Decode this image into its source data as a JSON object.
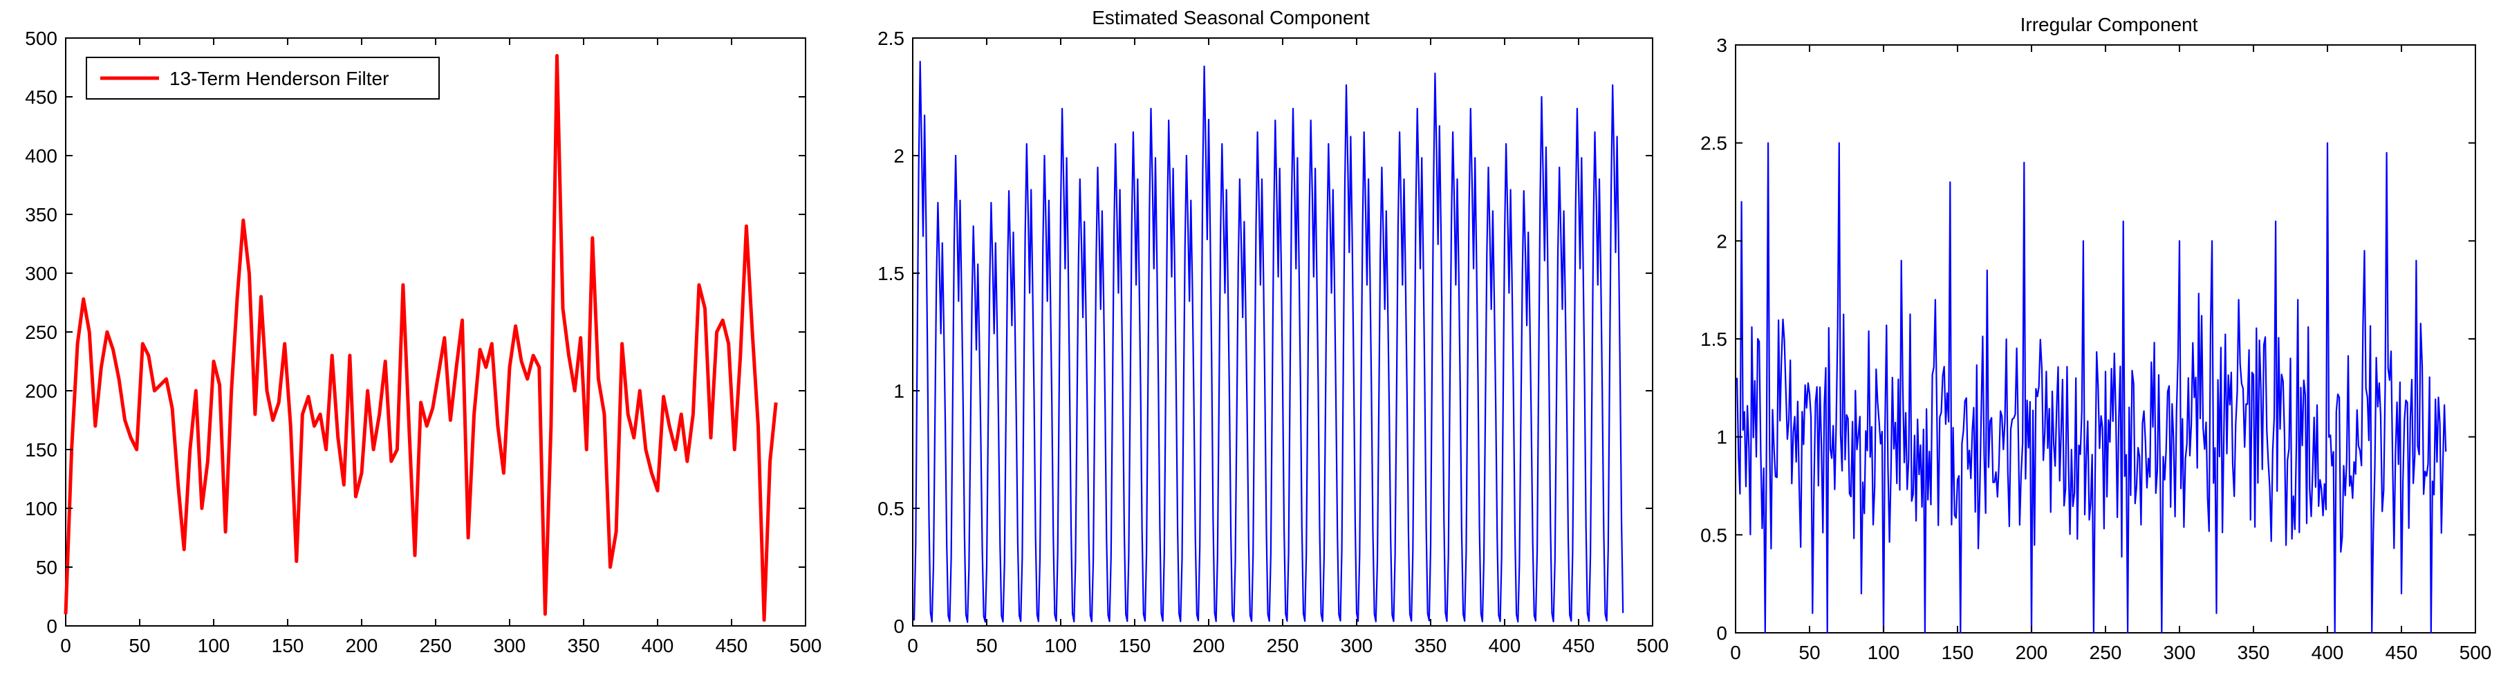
{
  "figure": {
    "chart_data": [
      {
        "type": "line",
        "title": "",
        "xlabel": "",
        "ylabel": "",
        "xlim": [
          0,
          500
        ],
        "ylim": [
          0,
          500
        ],
        "xticks": [
          0,
          50,
          100,
          150,
          200,
          250,
          300,
          350,
          400,
          450,
          500
        ],
        "yticks": [
          0,
          50,
          100,
          150,
          200,
          250,
          300,
          350,
          400,
          450,
          500
        ],
        "grid": false,
        "legend": {
          "position": "top-left",
          "entries": [
            "13-Term Henderson Filter"
          ]
        },
        "series": [
          {
            "name": "13-Term Henderson Filter",
            "color": "#ff0000",
            "x": [
              0,
              4,
              8,
              12,
              16,
              20,
              24,
              28,
              32,
              36,
              40,
              44,
              48,
              52,
              56,
              60,
              64,
              68,
              72,
              76,
              80,
              84,
              88,
              92,
              96,
              100,
              104,
              108,
              112,
              116,
              120,
              124,
              128,
              132,
              136,
              140,
              144,
              148,
              152,
              156,
              160,
              164,
              168,
              172,
              176,
              180,
              184,
              188,
              192,
              196,
              200,
              204,
              208,
              212,
              216,
              220,
              224,
              228,
              232,
              236,
              240,
              244,
              248,
              252,
              256,
              260,
              264,
              268,
              272,
              276,
              280,
              284,
              288,
              292,
              296,
              300,
              304,
              308,
              312,
              316,
              320,
              324,
              328,
              332,
              336,
              340,
              344,
              348,
              352,
              356,
              360,
              364,
              368,
              372,
              376,
              380,
              384,
              388,
              392,
              396,
              400,
              404,
              408,
              412,
              416,
              420,
              424,
              428,
              432,
              436,
              440,
              444,
              448,
              452,
              456,
              460,
              464,
              468,
              472,
              476,
              480
            ],
            "y": [
              10,
              150,
              240,
              278,
              250,
              170,
              220,
              250,
              235,
              210,
              175,
              160,
              150,
              240,
              230,
              200,
              205,
              210,
              185,
              120,
              65,
              150,
              200,
              100,
              140,
              225,
              205,
              80,
              200,
              280,
              345,
              300,
              180,
              280,
              200,
              175,
              190,
              240,
              170,
              55,
              180,
              195,
              170,
              180,
              150,
              230,
              160,
              120,
              230,
              110,
              130,
              200,
              150,
              180,
              225,
              140,
              150,
              290,
              170,
              60,
              190,
              170,
              185,
              215,
              245,
              175,
              220,
              260,
              75,
              180,
              235,
              220,
              240,
              170,
              130,
              220,
              255,
              225,
              210,
              230,
              220,
              10,
              170,
              485,
              270,
              230,
              200,
              245,
              150,
              330,
              210,
              180,
              50,
              80,
              240,
              180,
              160,
              200,
              150,
              130,
              115,
              195,
              170,
              150,
              180,
              140,
              180,
              290,
              270,
              160,
              250,
              260,
              240,
              150,
              230,
              340,
              250,
              170,
              5,
              140,
              190
            ]
          }
        ]
      },
      {
        "type": "line",
        "title": "Estimated Seasonal Component",
        "xlabel": "",
        "ylabel": "",
        "xlim": [
          0,
          500
        ],
        "ylim": [
          0,
          2.5
        ],
        "xticks": [
          0,
          50,
          100,
          150,
          200,
          250,
          300,
          350,
          400,
          450,
          500
        ],
        "yticks": [
          0,
          0.5,
          1,
          1.5,
          2,
          2.5
        ],
        "grid": false,
        "series": [
          {
            "color": "#0000ff",
            "period_approx": 12,
            "x_range": [
              1,
              480
            ],
            "cycle_pattern": [
              0.02,
              0.3,
              1.0,
              1.7,
              2.1,
              1.8,
              1.45,
              1.9,
              1.5,
              1.0,
              0.4,
              0.05
            ],
            "cycle_peaks": [
              2.4,
              1.8,
              2.0,
              1.7,
              1.8,
              1.85,
              2.05,
              2.0,
              2.2,
              1.9,
              1.95,
              2.05,
              2.1,
              2.2,
              2.15,
              2.0,
              2.38,
              2.05,
              1.9,
              2.1,
              2.15,
              2.2,
              2.15,
              2.05,
              2.3,
              2.1,
              1.95,
              2.1,
              2.2,
              2.35,
              2.1,
              2.2,
              1.95,
              2.05,
              1.85,
              2.25,
              1.95,
              2.2,
              2.1,
              2.3
            ]
          }
        ]
      },
      {
        "type": "line",
        "title": "Irregular Component",
        "xlabel": "",
        "ylabel": "",
        "xlim": [
          0,
          500
        ],
        "ylim": [
          0,
          3
        ],
        "xticks": [
          0,
          50,
          100,
          150,
          200,
          250,
          300,
          350,
          400,
          450,
          500
        ],
        "yticks": [
          0,
          0.5,
          1,
          1.5,
          2,
          2.5,
          3
        ],
        "grid": false,
        "series": [
          {
            "color": "#0000ff",
            "x_range": [
              1,
              480
            ],
            "baseline": 1.0,
            "spikes_up": [
              [
                4,
                2.2
              ],
              [
                22,
                2.5
              ],
              [
                32,
                1.6
              ],
              [
                70,
                2.5
              ],
              [
                112,
                1.9
              ],
              [
                135,
                1.7
              ],
              [
                145,
                2.3
              ],
              [
                170,
                1.85
              ],
              [
                195,
                2.4
              ],
              [
                235,
                2.0
              ],
              [
                262,
                2.1
              ],
              [
                300,
                2.0
              ],
              [
                322,
                2.0
              ],
              [
                340,
                1.7
              ],
              [
                365,
                2.1
              ],
              [
                380,
                1.7
              ],
              [
                400,
                2.5
              ],
              [
                425,
                1.95
              ],
              [
                440,
                2.45
              ],
              [
                460,
                1.9
              ]
            ],
            "spikes_down": [
              [
                20,
                0.0
              ],
              [
                52,
                0.1
              ],
              [
                62,
                0.0
              ],
              [
                85,
                0.2
              ],
              [
                100,
                0.0
              ],
              [
                128,
                0.0
              ],
              [
                152,
                0.0
              ],
              [
                170,
                0.1
              ],
              [
                200,
                0.0
              ],
              [
                242,
                0.0
              ],
              [
                265,
                0.0
              ],
              [
                288,
                0.0
              ],
              [
                300,
                0.0
              ],
              [
                325,
                0.1
              ],
              [
                380,
                0.0
              ],
              [
                405,
                0.0
              ],
              [
                430,
                0.0
              ],
              [
                450,
                0.2
              ],
              [
                470,
                0.0
              ]
            ]
          }
        ]
      }
    ]
  }
}
